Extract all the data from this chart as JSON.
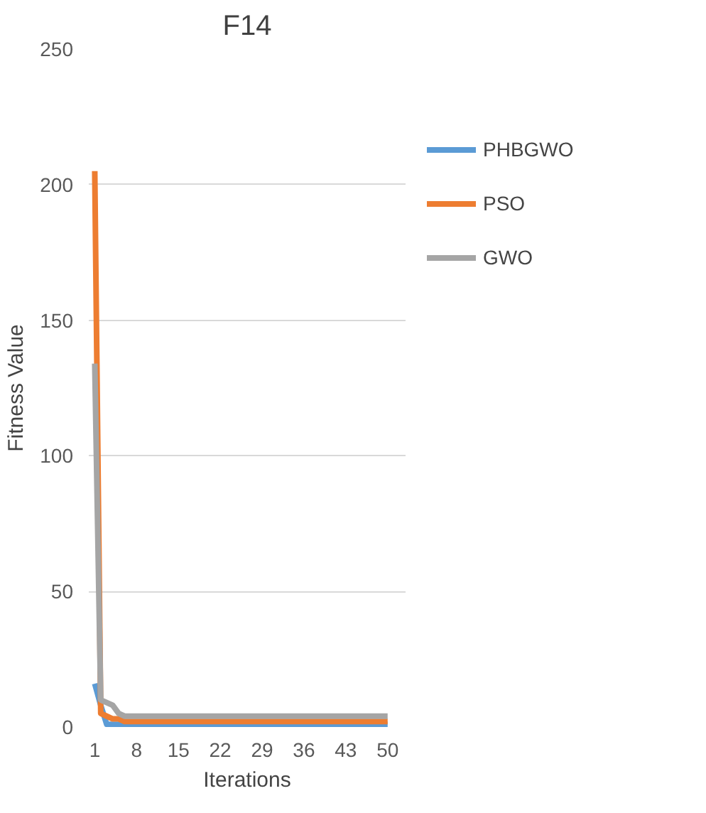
{
  "chart_data": {
    "type": "line",
    "title": "F14",
    "xlabel": "Iterations",
    "ylabel": "Fitness Value",
    "x": [
      1,
      2,
      3,
      4,
      5,
      6,
      8,
      15,
      22,
      29,
      36,
      43,
      50
    ],
    "xlim": [
      0,
      53
    ],
    "xticks": [
      1,
      8,
      15,
      22,
      29,
      36,
      43,
      50
    ],
    "ylim": [
      0,
      250
    ],
    "yticks": [
      0,
      50,
      100,
      150,
      200,
      250
    ],
    "grid": "y",
    "legend": "right",
    "series": [
      {
        "name": "PHBGWO",
        "color": "#5b9bd5",
        "values": [
          16,
          8,
          1,
          1,
          1,
          1,
          1,
          1,
          1,
          1,
          1,
          1,
          1
        ]
      },
      {
        "name": "PSO",
        "color": "#ed7d31",
        "values": [
          205,
          5,
          4,
          3,
          3,
          2,
          2,
          2,
          2,
          2,
          2,
          2,
          2
        ]
      },
      {
        "name": "GWO",
        "color": "#a5a5a5",
        "values": [
          134,
          10,
          9,
          8,
          5,
          4,
          4,
          4,
          4,
          4,
          4,
          4,
          4
        ]
      }
    ]
  }
}
